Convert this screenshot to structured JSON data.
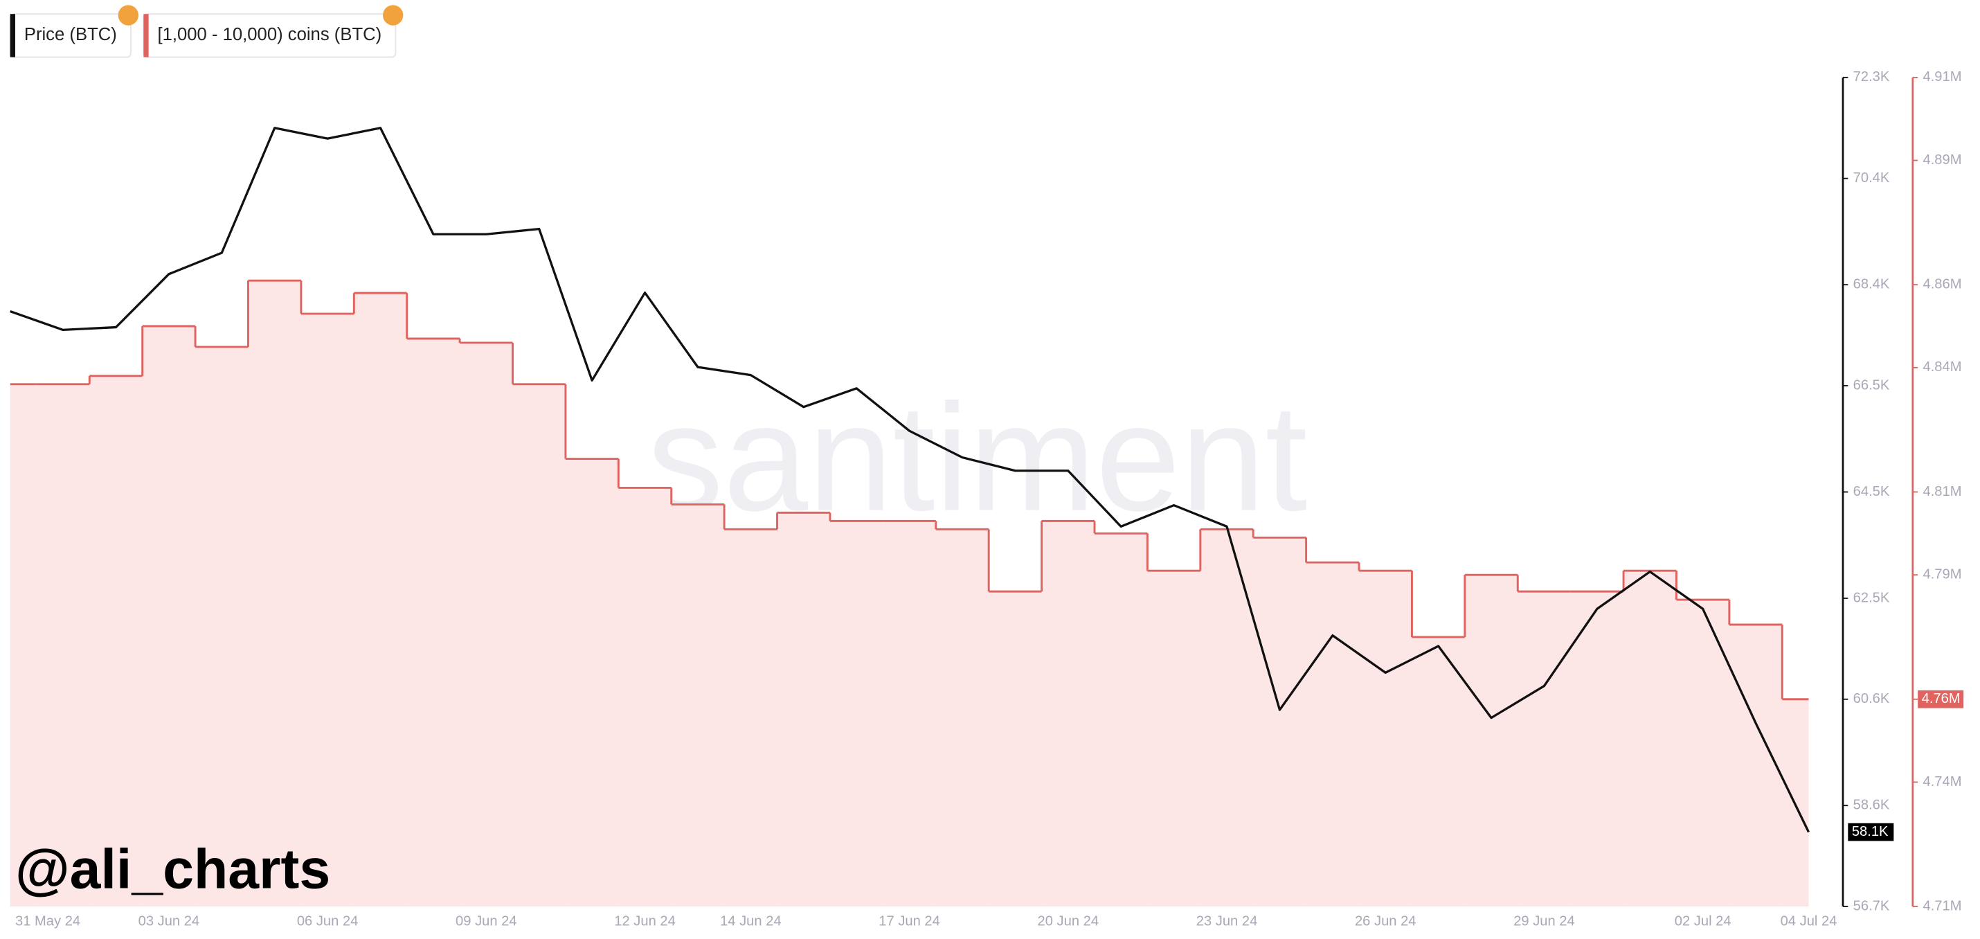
{
  "chart_data": {
    "type": "line",
    "watermark": "santiment",
    "annotation": "@ali_charts",
    "x": [
      "31 May 24",
      "01 Jun 24",
      "02 Jun 24",
      "03 Jun 24",
      "04 Jun 24",
      "05 Jun 24",
      "06 Jun 24",
      "07 Jun 24",
      "08 Jun 24",
      "09 Jun 24",
      "10 Jun 24",
      "11 Jun 24",
      "12 Jun 24",
      "13 Jun 24",
      "14 Jun 24",
      "15 Jun 24",
      "16 Jun 24",
      "17 Jun 24",
      "18 Jun 24",
      "19 Jun 24",
      "20 Jun 24",
      "21 Jun 24",
      "22 Jun 24",
      "23 Jun 24",
      "24 Jun 24",
      "25 Jun 24",
      "26 Jun 24",
      "27 Jun 24",
      "28 Jun 24",
      "29 Jun 24",
      "30 Jun 24",
      "01 Jul 24",
      "02 Jul 24",
      "03 Jul 24",
      "04 Jul 24"
    ],
    "xticks": [
      "31 May 24",
      "03 Jun 24",
      "06 Jun 24",
      "09 Jun 24",
      "12 Jun 24",
      "14 Jun 24",
      "17 Jun 24",
      "20 Jun 24",
      "23 Jun 24",
      "26 Jun 24",
      "29 Jun 24",
      "02 Jul 24",
      "04 Jul 24"
    ],
    "series": [
      {
        "name": "Price (BTC)",
        "color": "#111111",
        "axis": "y",
        "values": [
          67900,
          67550,
          67600,
          68600,
          69000,
          71350,
          71150,
          71350,
          69350,
          69350,
          69450,
          66600,
          68250,
          66850,
          66700,
          66100,
          66450,
          65650,
          65150,
          64900,
          64900,
          63850,
          64250,
          63850,
          60400,
          61800,
          61100,
          61600,
          60250,
          60850,
          62300,
          63000,
          62300,
          60150,
          58100
        ],
        "value_label": "58.1K"
      },
      {
        "name": "[1,000 - 10,000) coins (BTC)",
        "color": "#e0635f",
        "fill": "#fde6e6",
        "axis": "y2",
        "values": [
          4836000,
          4836000,
          4838000,
          4850000,
          4845000,
          4861000,
          4853000,
          4858000,
          4847000,
          4846000,
          4836000,
          4818000,
          4811000,
          4807000,
          4801000,
          4805000,
          4803000,
          4803000,
          4801000,
          4786000,
          4803000,
          4800000,
          4791000,
          4801000,
          4799000,
          4793000,
          4791000,
          4775000,
          4790000,
          4786000,
          4786000,
          4791000,
          4784000,
          4778000,
          4760000
        ],
        "value_label": "4.76M"
      }
    ],
    "ylim": [
      56700,
      72300
    ],
    "yticks": [
      {
        "value": 56700,
        "label": "56.7K"
      },
      {
        "value": 58600,
        "label": "58.6K"
      },
      {
        "value": 60600,
        "label": "60.6K"
      },
      {
        "value": 62500,
        "label": "62.5K"
      },
      {
        "value": 64500,
        "label": "64.5K"
      },
      {
        "value": 66500,
        "label": "66.5K"
      },
      {
        "value": 68400,
        "label": "68.4K"
      },
      {
        "value": 70400,
        "label": "70.4K"
      },
      {
        "value": 72300,
        "label": "72.3K"
      }
    ],
    "y2lim": [
      4710000,
      4910000
    ],
    "y2ticks": [
      {
        "value": 4710000,
        "label": "4.71M"
      },
      {
        "value": 4740000,
        "label": "4.74M"
      },
      {
        "value": 4760000,
        "label": "4.76M"
      },
      {
        "value": 4790000,
        "label": "4.79M"
      },
      {
        "value": 4810000,
        "label": "4.81M"
      },
      {
        "value": 4840000,
        "label": "4.84M"
      },
      {
        "value": 4860000,
        "label": "4.86M"
      },
      {
        "value": 4890000,
        "label": "4.89M"
      },
      {
        "value": 4910000,
        "label": "4.91M"
      }
    ]
  }
}
